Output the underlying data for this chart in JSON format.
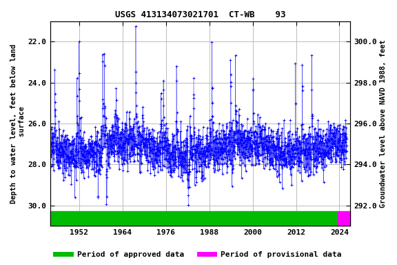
{
  "title": "USGS 413134073021701  CT-WB    93",
  "ylabel_left": "Depth to water level, feet below land\n surface",
  "ylabel_right": "Groundwater level above NAVD 1988, feet",
  "xlim": [
    1944,
    2027
  ],
  "ylim_left": [
    31.0,
    21.0
  ],
  "ylim_right": [
    291.0,
    301.0
  ],
  "yticks_left": [
    22.0,
    24.0,
    26.0,
    28.0,
    30.0
  ],
  "yticks_right": [
    292.0,
    294.0,
    296.0,
    298.0,
    300.0
  ],
  "xticks": [
    1952,
    1964,
    1976,
    1988,
    2000,
    2012,
    2024
  ],
  "data_color": "#0000FF",
  "approved_color": "#00BB00",
  "provisional_color": "#FF00FF",
  "approved_xstart": 1944,
  "approved_xend": 2023.5,
  "provisional_xstart": 2023.5,
  "provisional_xend": 2027,
  "background_color": "#ffffff",
  "grid_color": "#bbbbbb",
  "title_fontsize": 9,
  "label_fontsize": 7.5,
  "tick_fontsize": 8,
  "legend_fontsize": 8,
  "seed": 42,
  "n_points": 2500,
  "x_start": 1944,
  "x_end": 2026,
  "base_depth": 27.2,
  "noise_std": 0.55,
  "spike_up_prob": 0.008,
  "spike_down_prob": 0.005,
  "spike_up_magnitude": 5.0,
  "spike_down_magnitude": 2.5
}
